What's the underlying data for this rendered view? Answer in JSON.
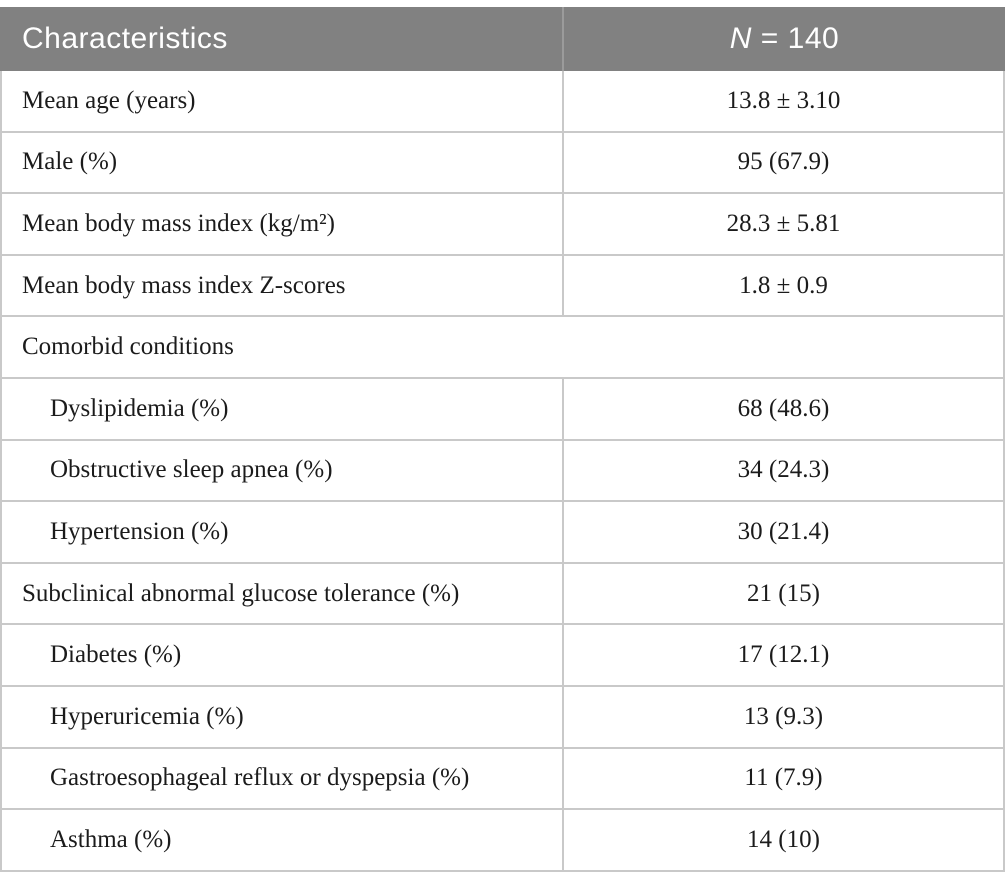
{
  "colors": {
    "header_background": "#818181",
    "header_text": "#ffffff",
    "border": "#c9c9c9",
    "body_text": "#1b1b1b"
  },
  "header": {
    "characteristics": "Characteristics",
    "n_symbol": "N",
    "n_value": " = 140"
  },
  "rows": [
    {
      "label": "Mean age (years)",
      "value": "13.8 ± 3.10",
      "indent": false,
      "span": false
    },
    {
      "label": "Male (%)",
      "value": "95 (67.9)",
      "indent": false,
      "span": false
    },
    {
      "label": "Mean body mass index (kg/m²)",
      "value": "28.3 ± 5.81",
      "indent": false,
      "span": false
    },
    {
      "label": "Mean body mass index Z-scores",
      "value": "1.8 ± 0.9",
      "indent": false,
      "span": false
    },
    {
      "label": "Comorbid conditions",
      "value": "",
      "indent": false,
      "span": true
    },
    {
      "label": "Dyslipidemia (%)",
      "value": "68 (48.6)",
      "indent": true,
      "span": false
    },
    {
      "label": "Obstructive sleep apnea (%)",
      "value": "34 (24.3)",
      "indent": true,
      "span": false
    },
    {
      "label": "Hypertension (%)",
      "value": "30 (21.4)",
      "indent": true,
      "span": false
    },
    {
      "label": "Subclinical abnormal glucose tolerance (%)",
      "value": "21 (15)",
      "indent": false,
      "span": false
    },
    {
      "label": "Diabetes (%)",
      "value": "17 (12.1)",
      "indent": true,
      "span": false
    },
    {
      "label": "Hyperuricemia (%)",
      "value": "13 (9.3)",
      "indent": true,
      "span": false
    },
    {
      "label": "Gastroesophageal reflux or dyspepsia (%)",
      "value": "11 (7.9)",
      "indent": true,
      "span": false
    },
    {
      "label": "Asthma (%)",
      "value": "14 (10)",
      "indent": true,
      "span": false
    }
  ]
}
